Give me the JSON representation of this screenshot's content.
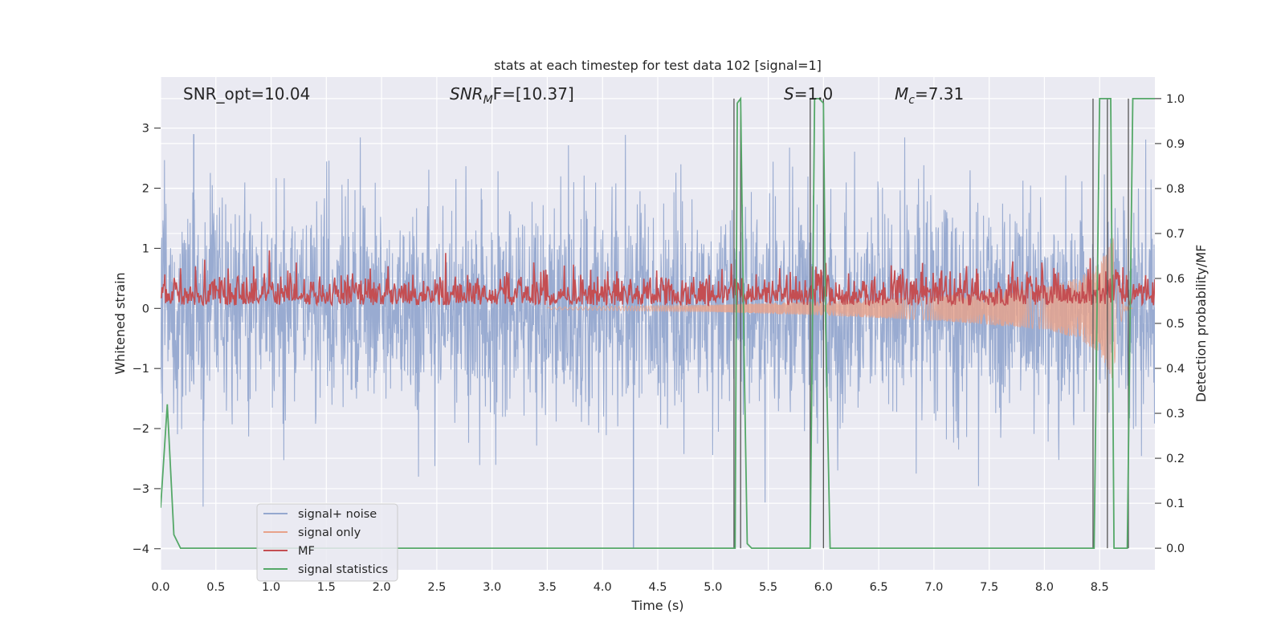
{
  "chart_data": {
    "type": "line",
    "title": "stats at each timestep for test data 102 [signal=1]",
    "xlabel": "Time (s)",
    "ylabel": "Whitened strain",
    "y2label": "Detection probability/MF",
    "xlim": [
      0.0,
      9.0
    ],
    "ylim": [
      -4.35,
      3.85
    ],
    "y2lim": [
      -0.048,
      1.048
    ],
    "xticks": [
      "0.0",
      "0.5",
      "1.0",
      "1.5",
      "2.0",
      "2.5",
      "3.0",
      "3.5",
      "4.0",
      "4.5",
      "5.0",
      "5.5",
      "6.0",
      "6.5",
      "7.0",
      "7.5",
      "8.0",
      "8.5"
    ],
    "yticks": [
      "3",
      "2",
      "1",
      "0",
      "−1",
      "−2",
      "−3",
      "−4"
    ],
    "y2ticks": [
      "1.0",
      "0.9",
      "0.8",
      "0.7",
      "0.6",
      "0.5",
      "0.4",
      "0.3",
      "0.2",
      "0.1",
      "0.0"
    ],
    "grid": true,
    "legend_position": "lower-left",
    "annotations": {
      "snr_opt": "SNR_opt=10.04",
      "snr_mf_sym": "SNR",
      "snr_mf_sub": "M",
      "snr_mf_rest": "F=[10.37]",
      "s_sym": "S",
      "s_rest": "=1.0",
      "mc_sym": "M",
      "mc_sub": "c",
      "mc_rest": "=7.31"
    },
    "series": [
      {
        "name": "signal+ noise",
        "color": "#95a8cf",
        "noise_std": 0.9,
        "noise_extremes": [
          -4.0,
          2.9
        ]
      },
      {
        "name": "signal only",
        "color": "#e8a28a",
        "envelope": {
          "x": [
            3.5,
            5.0,
            6.0,
            7.0,
            8.0,
            8.3,
            8.5,
            8.62,
            8.66,
            8.72,
            8.8
          ],
          "amp": [
            0.02,
            0.06,
            0.12,
            0.2,
            0.35,
            0.5,
            0.75,
            1.2,
            0.5,
            0.05,
            0.0
          ]
        }
      },
      {
        "name": "MF",
        "color": "#c44e52",
        "baseline": 0.55,
        "jitter": 0.05,
        "range": [
          0.52,
          0.63
        ]
      },
      {
        "name": "signal statistics",
        "color": "#55a868",
        "x": [
          0.0,
          0.06,
          0.12,
          0.18,
          0.25,
          5.2,
          5.22,
          5.25,
          5.28,
          5.31,
          5.35,
          5.4,
          5.88,
          5.92,
          5.96,
          6.0,
          6.02,
          6.06,
          8.45,
          8.5,
          8.6,
          8.63,
          8.7,
          8.75,
          8.8,
          8.9,
          9.0
        ],
        "y": [
          0.09,
          0.32,
          0.03,
          0.0,
          0.0,
          0.0,
          0.99,
          1.0,
          0.45,
          0.01,
          0.0,
          0.0,
          0.0,
          1.0,
          1.0,
          0.99,
          0.49,
          0.0,
          0.0,
          1.0,
          1.0,
          0.0,
          0.0,
          0.0,
          1.0,
          1.0,
          1.0
        ]
      }
    ],
    "vlines": [
      5.19,
      5.25,
      5.88,
      6.0,
      8.44,
      8.57,
      8.76
    ]
  }
}
